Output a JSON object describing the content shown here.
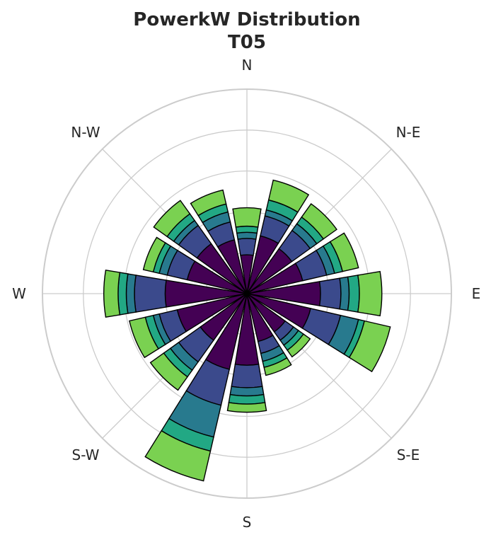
{
  "chart_data": {
    "type": "windrose",
    "title_lines": [
      "PowerkW Distribution",
      "T05"
    ],
    "direction_labels": [
      "N",
      "N-E",
      "E",
      "S-E",
      "S",
      "S-W",
      "W",
      "N-W"
    ],
    "sector_count": 16,
    "rmax": 5,
    "grid_rings": [
      1,
      2,
      3,
      4,
      5
    ],
    "grid": true,
    "legend": "none",
    "bin_colors": [
      "#440154",
      "#3b4a8c",
      "#287a8e",
      "#22a884",
      "#7ad151"
    ],
    "sectors": [
      {
        "direction_deg": 0.0,
        "edges": [
          0.95,
          1.35,
          1.5,
          1.65,
          2.1
        ]
      },
      {
        "direction_deg": 22.5,
        "edges": [
          1.45,
          1.95,
          2.1,
          2.35,
          2.85
        ]
      },
      {
        "direction_deg": 45.0,
        "edges": [
          1.35,
          1.9,
          2.1,
          2.3,
          2.7
        ]
      },
      {
        "direction_deg": 67.5,
        "edges": [
          1.4,
          2.0,
          2.2,
          2.4,
          2.8
        ]
      },
      {
        "direction_deg": 90.0,
        "edges": [
          1.8,
          2.3,
          2.5,
          2.75,
          3.3
        ]
      },
      {
        "direction_deg": 112.5,
        "edges": [
          1.6,
          2.35,
          2.8,
          2.95,
          3.6
        ]
      },
      {
        "direction_deg": 135.0,
        "edges": [
          1.15,
          1.4,
          1.55,
          1.7,
          1.9
        ]
      },
      {
        "direction_deg": 157.5,
        "edges": [
          1.2,
          1.5,
          1.7,
          1.85,
          2.05
        ]
      },
      {
        "direction_deg": 180.0,
        "edges": [
          1.75,
          2.3,
          2.5,
          2.7,
          2.9
        ]
      },
      {
        "direction_deg": 202.5,
        "edges": [
          1.9,
          2.8,
          3.6,
          3.95,
          4.7
        ]
      },
      {
        "direction_deg": 225.0,
        "edges": [
          1.4,
          2.05,
          2.3,
          2.5,
          2.9
        ]
      },
      {
        "direction_deg": 247.5,
        "edges": [
          1.75,
          2.2,
          2.35,
          2.55,
          2.95
        ]
      },
      {
        "direction_deg": 270.0,
        "edges": [
          2.0,
          2.75,
          2.95,
          3.15,
          3.5
        ]
      },
      {
        "direction_deg": 292.5,
        "edges": [
          1.5,
          2.0,
          2.2,
          2.35,
          2.6
        ]
      },
      {
        "direction_deg": 315.0,
        "edges": [
          1.5,
          2.05,
          2.2,
          2.4,
          2.8
        ]
      },
      {
        "direction_deg": 337.5,
        "edges": [
          1.35,
          1.8,
          2.05,
          2.25,
          2.6
        ]
      }
    ]
  }
}
